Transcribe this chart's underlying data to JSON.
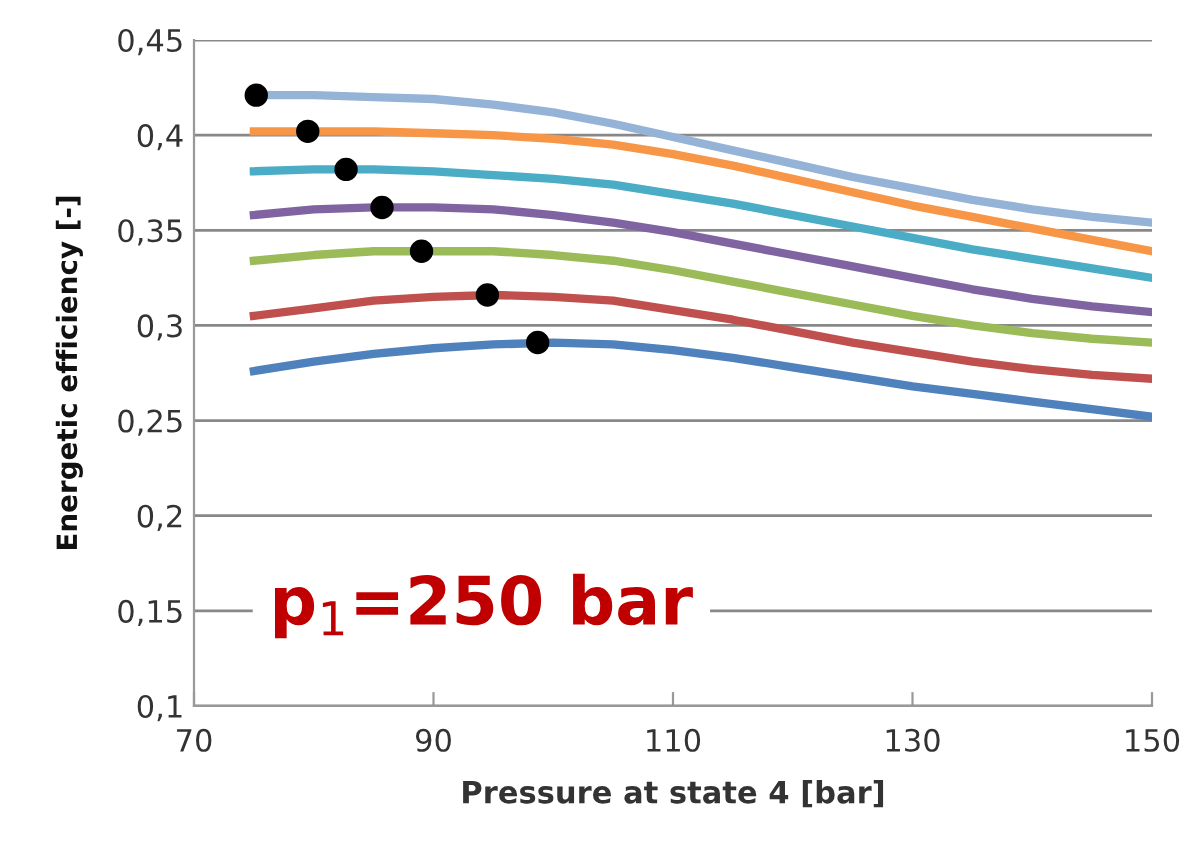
{
  "chart_data": {
    "type": "line",
    "xlabel": "Pressure at state 4 [bar]",
    "ylabel": "Energetic efficiency [-]",
    "x": [
      75,
      80,
      85,
      90,
      95,
      100,
      105,
      110,
      115,
      120,
      125,
      130,
      135,
      140,
      145,
      150
    ],
    "series": [
      {
        "color": "#95b3d7",
        "values": [
          0.421,
          0.421,
          0.42,
          0.419,
          0.416,
          0.412,
          0.406,
          0.399,
          0.392,
          0.385,
          0.378,
          0.372,
          0.366,
          0.361,
          0.357,
          0.354
        ]
      },
      {
        "color": "#f79646",
        "values": [
          0.402,
          0.402,
          0.402,
          0.401,
          0.4,
          0.398,
          0.395,
          0.39,
          0.384,
          0.377,
          0.37,
          0.363,
          0.357,
          0.351,
          0.345,
          0.339
        ]
      },
      {
        "color": "#4bacc6",
        "values": [
          0.381,
          0.382,
          0.382,
          0.381,
          0.379,
          0.377,
          0.374,
          0.369,
          0.364,
          0.358,
          0.352,
          0.346,
          0.34,
          0.335,
          0.33,
          0.325
        ]
      },
      {
        "color": "#8064a2",
        "values": [
          0.358,
          0.361,
          0.362,
          0.362,
          0.361,
          0.358,
          0.354,
          0.349,
          0.343,
          0.337,
          0.331,
          0.325,
          0.319,
          0.314,
          0.31,
          0.307
        ]
      },
      {
        "color": "#9bbb59",
        "values": [
          0.334,
          0.337,
          0.339,
          0.339,
          0.339,
          0.337,
          0.334,
          0.329,
          0.323,
          0.317,
          0.311,
          0.305,
          0.3,
          0.296,
          0.293,
          0.291
        ]
      },
      {
        "color": "#c0504d",
        "values": [
          0.305,
          0.309,
          0.313,
          0.315,
          0.316,
          0.315,
          0.313,
          0.308,
          0.303,
          0.297,
          0.291,
          0.286,
          0.281,
          0.277,
          0.274,
          0.272
        ]
      },
      {
        "color": "#4f81bd",
        "values": [
          0.276,
          0.281,
          0.285,
          0.288,
          0.29,
          0.291,
          0.29,
          0.287,
          0.283,
          0.278,
          0.273,
          0.268,
          0.264,
          0.26,
          0.256,
          0.252
        ]
      },
      {
        "type": "scatter",
        "marker": "circle",
        "color": "#000000",
        "x": [
          75.2,
          79.5,
          82.7,
          85.7,
          89,
          94.5,
          98.7
        ],
        "values": [
          0.421,
          0.402,
          0.382,
          0.362,
          0.339,
          0.316,
          0.291
        ]
      }
    ],
    "xlim": [
      70,
      150
    ],
    "xticks": [
      70,
      90,
      110,
      130,
      150
    ],
    "ylim": [
      0.1,
      0.45
    ],
    "yticks": [
      {
        "value": 0.1,
        "label": "0,1"
      },
      {
        "value": 0.15,
        "label": "0,15"
      },
      {
        "value": 0.2,
        "label": "0,2"
      },
      {
        "value": 0.25,
        "label": "0,25"
      },
      {
        "value": 0.3,
        "label": "0,3"
      },
      {
        "value": 0.35,
        "label": "0,35"
      },
      {
        "value": 0.4,
        "label": "0,4"
      },
      {
        "value": 0.45,
        "label": "0,45"
      }
    ],
    "grid": "y",
    "annotations": [
      "p$_{1}$=250 bar"
    ]
  }
}
